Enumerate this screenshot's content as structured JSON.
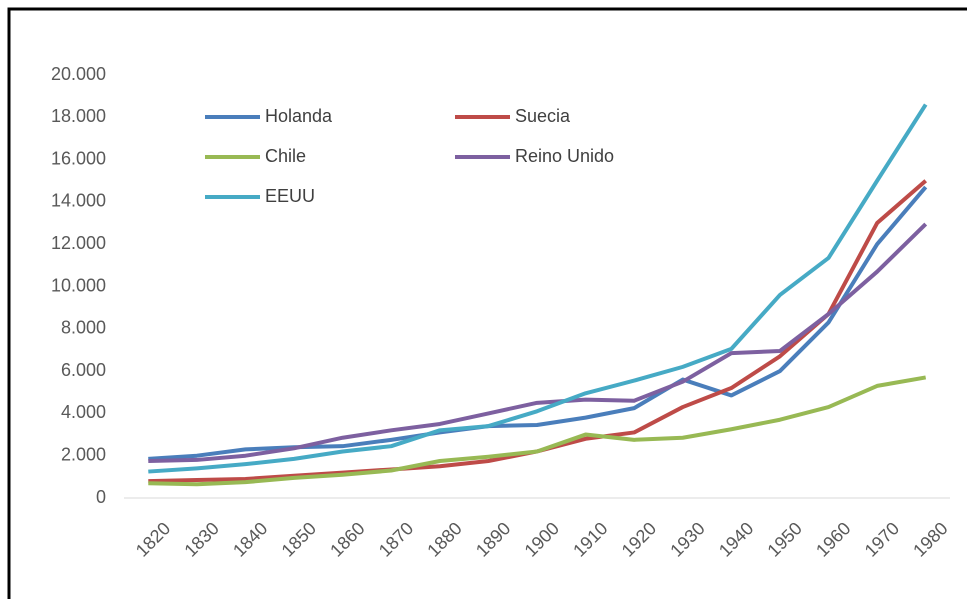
{
  "chart_data": {
    "type": "line",
    "categories": [
      "1820",
      "1830",
      "1840",
      "1850",
      "1860",
      "1870",
      "1880",
      "1890",
      "1900",
      "1910",
      "1920",
      "1930",
      "1940",
      "1950",
      "1960",
      "1970",
      "1980"
    ],
    "series": [
      {
        "name": "Holanda",
        "color": "#4a7ebb",
        "values": [
          1850,
          2000,
          2300,
          2400,
          2450,
          2750,
          3100,
          3400,
          3450,
          3800,
          4250,
          5600,
          4850,
          6000,
          8300,
          12000,
          14700
        ]
      },
      {
        "name": "Suecia",
        "color": "#be4b48",
        "values": [
          800,
          850,
          900,
          1050,
          1200,
          1350,
          1500,
          1750,
          2200,
          2800,
          3100,
          4300,
          5200,
          6700,
          8700,
          13000,
          15000
        ]
      },
      {
        "name": "Chile",
        "color": "#98b954",
        "values": [
          700,
          650,
          750,
          950,
          1100,
          1300,
          1750,
          1950,
          2200,
          3000,
          2750,
          2850,
          3250,
          3700,
          4300,
          5300,
          5700
        ]
      },
      {
        "name": "Reino Unido",
        "color": "#7d60a0",
        "values": [
          1750,
          1800,
          2000,
          2350,
          2850,
          3200,
          3500,
          4000,
          4500,
          4650,
          4600,
          5500,
          6850,
          6950,
          8700,
          10700,
          12950
        ]
      },
      {
        "name": "EEUU",
        "color": "#46aac5",
        "values": [
          1250,
          1400,
          1600,
          1850,
          2200,
          2450,
          3200,
          3400,
          4100,
          4950,
          5550,
          6200,
          7050,
          9600,
          11350,
          15000,
          18600
        ]
      }
    ],
    "ylim": [
      0,
      20000
    ],
    "yticks": [
      0,
      {
        "value": 2000,
        "label": "2.000"
      },
      {
        "value": 4000,
        "label": "4.000"
      },
      {
        "value": 6000,
        "label": "6.000"
      },
      {
        "value": 8000,
        "label": "8.000"
      },
      {
        "value": 10000,
        "label": "10.000"
      },
      {
        "value": 12000,
        "label": "12.000"
      },
      {
        "value": 14000,
        "label": "14.000"
      },
      {
        "value": 16000,
        "label": "16.000"
      },
      {
        "value": 18000,
        "label": "18.000"
      },
      {
        "value": 20000,
        "label": "20.000"
      }
    ],
    "grid": false,
    "legend": "top-left"
  }
}
